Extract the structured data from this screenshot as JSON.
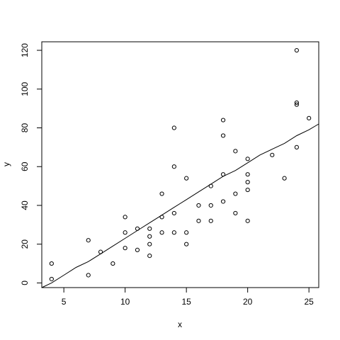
{
  "chart_data": {
    "type": "scatter",
    "title": "",
    "xlabel": "x",
    "ylabel": "y",
    "xlim": [
      3.2,
      25.8
    ],
    "ylim": [
      -2.4,
      124.4
    ],
    "x_ticks": [
      5,
      10,
      15,
      20,
      25
    ],
    "y_ticks": [
      0,
      20,
      40,
      60,
      80,
      100,
      120
    ],
    "grid": false,
    "legend": "none",
    "points": [
      {
        "x": 4,
        "y": 2
      },
      {
        "x": 4,
        "y": 10
      },
      {
        "x": 7,
        "y": 4
      },
      {
        "x": 7,
        "y": 22
      },
      {
        "x": 8,
        "y": 16
      },
      {
        "x": 9,
        "y": 10
      },
      {
        "x": 10,
        "y": 18
      },
      {
        "x": 10,
        "y": 26
      },
      {
        "x": 10,
        "y": 34
      },
      {
        "x": 11,
        "y": 17
      },
      {
        "x": 11,
        "y": 28
      },
      {
        "x": 12,
        "y": 14
      },
      {
        "x": 12,
        "y": 20
      },
      {
        "x": 12,
        "y": 24
      },
      {
        "x": 12,
        "y": 28
      },
      {
        "x": 13,
        "y": 26
      },
      {
        "x": 13,
        "y": 34
      },
      {
        "x": 13,
        "y": 46
      },
      {
        "x": 14,
        "y": 26
      },
      {
        "x": 14,
        "y": 36
      },
      {
        "x": 14,
        "y": 60
      },
      {
        "x": 14,
        "y": 80
      },
      {
        "x": 15,
        "y": 20
      },
      {
        "x": 15,
        "y": 26
      },
      {
        "x": 15,
        "y": 54
      },
      {
        "x": 16,
        "y": 32
      },
      {
        "x": 16,
        "y": 40
      },
      {
        "x": 17,
        "y": 32
      },
      {
        "x": 17,
        "y": 40
      },
      {
        "x": 17,
        "y": 50
      },
      {
        "x": 18,
        "y": 42
      },
      {
        "x": 18,
        "y": 56
      },
      {
        "x": 18,
        "y": 76
      },
      {
        "x": 18,
        "y": 84
      },
      {
        "x": 19,
        "y": 36
      },
      {
        "x": 19,
        "y": 46
      },
      {
        "x": 19,
        "y": 68
      },
      {
        "x": 20,
        "y": 32
      },
      {
        "x": 20,
        "y": 48
      },
      {
        "x": 20,
        "y": 52
      },
      {
        "x": 20,
        "y": 56
      },
      {
        "x": 20,
        "y": 64
      },
      {
        "x": 22,
        "y": 66
      },
      {
        "x": 23,
        "y": 54
      },
      {
        "x": 24,
        "y": 70
      },
      {
        "x": 24,
        "y": 92
      },
      {
        "x": 24,
        "y": 93
      },
      {
        "x": 24,
        "y": 120
      },
      {
        "x": 25,
        "y": 85
      }
    ],
    "fit_line": [
      {
        "x": 3.2,
        "y": -2.4
      },
      {
        "x": 4,
        "y": 0
      },
      {
        "x": 5,
        "y": 4
      },
      {
        "x": 6,
        "y": 8
      },
      {
        "x": 7,
        "y": 11
      },
      {
        "x": 8,
        "y": 15
      },
      {
        "x": 9,
        "y": 19
      },
      {
        "x": 10,
        "y": 23
      },
      {
        "x": 11,
        "y": 27
      },
      {
        "x": 12,
        "y": 31
      },
      {
        "x": 13,
        "y": 35
      },
      {
        "x": 14,
        "y": 39
      },
      {
        "x": 15,
        "y": 43
      },
      {
        "x": 16,
        "y": 47
      },
      {
        "x": 17,
        "y": 51
      },
      {
        "x": 18,
        "y": 55
      },
      {
        "x": 19,
        "y": 58
      },
      {
        "x": 20,
        "y": 62
      },
      {
        "x": 21,
        "y": 66
      },
      {
        "x": 22,
        "y": 69
      },
      {
        "x": 23,
        "y": 72
      },
      {
        "x": 24,
        "y": 76
      },
      {
        "x": 25,
        "y": 79
      },
      {
        "x": 25.8,
        "y": 82
      }
    ]
  }
}
